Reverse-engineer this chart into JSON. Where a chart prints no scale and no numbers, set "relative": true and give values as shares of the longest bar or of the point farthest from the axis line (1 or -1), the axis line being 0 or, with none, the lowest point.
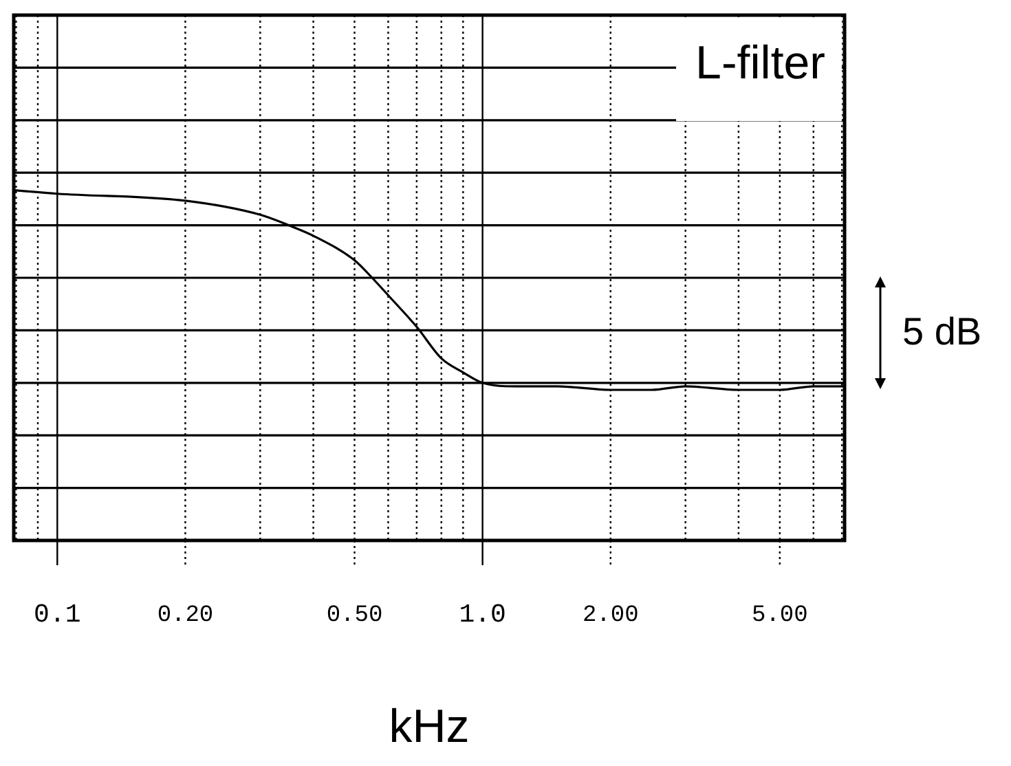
{
  "chart_data": {
    "type": "line",
    "title": "L-filter",
    "xlabel": "kHz",
    "annotations": [
      "5 dB"
    ],
    "relative": true,
    "log": "x",
    "grid": true,
    "marker": "none",
    "line_style": "solid",
    "xlim": [
      0.079,
      7.1
    ],
    "xticks": [
      {
        "value": 0.1,
        "label": "0.1"
      },
      {
        "value": 0.2,
        "label": "0.20"
      },
      {
        "value": 0.5,
        "label": "0.50"
      },
      {
        "value": 1,
        "label": "1.0"
      },
      {
        "value": 2,
        "label": "2.00"
      },
      {
        "value": 5,
        "label": "5.00"
      }
    ],
    "series": [
      {
        "color": "#000000",
        "x": [
          0.079,
          0.1,
          0.2,
          0.3,
          0.35,
          0.4,
          0.5,
          0.55,
          0.6,
          0.7,
          0.8,
          0.9,
          1.0,
          1.2,
          1.5,
          2,
          2.5,
          3,
          4,
          5,
          6,
          7.1
        ],
        "values": [
          1,
          0.99,
          0.97,
          0.93,
          0.9,
          0.87,
          0.8,
          0.75,
          0.7,
          0.61,
          0.52,
          0.48,
          0.45,
          0.44,
          0.44,
          0.43,
          0.43,
          0.44,
          0.43,
          0.43,
          0.44,
          0.44
        ]
      }
    ]
  }
}
